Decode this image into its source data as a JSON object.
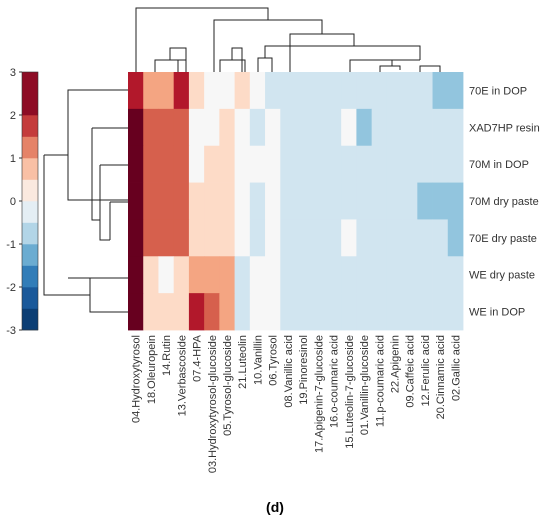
{
  "chart_data": {
    "type": "heatmap",
    "columns": [
      "04.Hydroxytyrosol",
      "18.Oleuropein",
      "14.Rutin",
      "13.Verbascoside",
      "07.4-HPA",
      "03.Hydroxytyrosol-glucoside",
      "05.Tyrosol-glucoside",
      "21.Luteolin",
      "10.Vanillin",
      "06.Tyrosol",
      "08.Vanillic acid",
      "19.Pinoresinol",
      "17.Apigenin-7-glucoside",
      "16.o-coumaric acid",
      "15.Luteolin-7-glucoside",
      "01.Vanillin-glucoside",
      "11.p-coumaric acid",
      "22.Apigenin",
      "09.Caffeic acid",
      "12.Ferulic acid",
      "20.Cinnamic acid",
      "02.Gallic acid"
    ],
    "rows": [
      "70E in DOP",
      "XAD7HP resin",
      "70M in DOP",
      "70M dry paste",
      "70E dry paste",
      "WE dry paste",
      "WE in DOP"
    ],
    "values": [
      [
        2,
        1,
        1,
        2,
        0.5,
        0,
        0,
        0.5,
        0,
        -0.5,
        -0.5,
        -0.5,
        -0.5,
        -0.5,
        -0.5,
        -0.5,
        -0.5,
        -0.5,
        -0.5,
        -0.5,
        -1,
        -1
      ],
      [
        3,
        1.5,
        1.5,
        1.5,
        0,
        0,
        0.5,
        0,
        -0.5,
        0,
        -0.5,
        -0.5,
        -0.5,
        -0.5,
        0,
        -1,
        -0.5,
        -0.5,
        -0.5,
        -0.5,
        -0.5,
        -0.5
      ],
      [
        3,
        1.5,
        1.5,
        1.5,
        0,
        0.5,
        0.5,
        0,
        0,
        0,
        -0.5,
        -0.5,
        -0.5,
        -0.5,
        -0.5,
        -0.5,
        -0.5,
        -0.5,
        -0.5,
        -0.5,
        -0.5,
        -0.5
      ],
      [
        3,
        1.5,
        1.5,
        1.5,
        0.5,
        0.5,
        0.5,
        0,
        -0.5,
        0,
        -0.5,
        -0.5,
        -0.5,
        -0.5,
        -0.5,
        -0.5,
        -0.5,
        -0.5,
        -0.5,
        -1,
        -1,
        -1
      ],
      [
        3,
        1.5,
        1.5,
        1.5,
        0.5,
        0.5,
        0.5,
        0,
        -0.5,
        0,
        -0.5,
        -0.5,
        -0.5,
        -0.5,
        0,
        -0.5,
        -0.5,
        -0.5,
        -0.5,
        -0.5,
        -0.5,
        -1
      ],
      [
        3,
        0.5,
        0,
        0.5,
        1,
        1,
        1,
        -0.5,
        0,
        0,
        -0.5,
        -0.5,
        -0.5,
        -0.5,
        -0.5,
        -0.5,
        -0.5,
        -0.5,
        -0.5,
        -0.5,
        -0.5,
        -0.5
      ],
      [
        3,
        0.5,
        0.5,
        0.5,
        2,
        1.5,
        1,
        -0.5,
        0,
        0,
        -0.5,
        -0.5,
        -0.5,
        -0.5,
        -0.5,
        -0.5,
        -0.5,
        -0.5,
        -0.5,
        -0.5,
        -0.5,
        -0.5
      ]
    ],
    "colorscale": [
      [
        -3,
        "#053061"
      ],
      [
        -2.5,
        "#134c87"
      ],
      [
        -2,
        "#2166ac"
      ],
      [
        -1.5,
        "#4393c3"
      ],
      [
        -1,
        "#92c5de"
      ],
      [
        -0.5,
        "#d1e5f0"
      ],
      [
        0,
        "#f7f7f7"
      ],
      [
        0.5,
        "#fddbc7"
      ],
      [
        1,
        "#f4a582"
      ],
      [
        1.5,
        "#d6604d"
      ],
      [
        2,
        "#b2182b"
      ],
      [
        3,
        "#67001f"
      ]
    ],
    "clim": [
      -3,
      3
    ],
    "cticks": [
      -3,
      -2,
      -1,
      0,
      1,
      2,
      3
    ],
    "caption": "(d)"
  }
}
